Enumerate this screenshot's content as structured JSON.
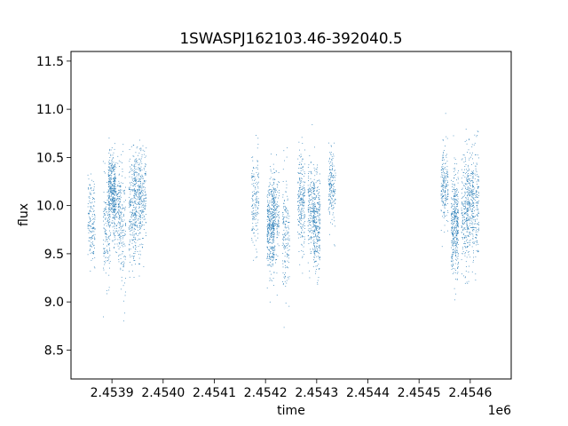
{
  "chart_data": {
    "type": "scatter",
    "title": "1SWASPJ162103.46-392040.5",
    "xlabel": "time",
    "ylabel": "flux",
    "x_offset_label": "1e6",
    "xlim": [
      2.45382,
      2.45468
    ],
    "ylim": [
      8.2,
      11.6
    ],
    "xticks": [
      2.4539,
      2.454,
      2.4541,
      2.4542,
      2.4543,
      2.4544,
      2.4545,
      2.4546
    ],
    "xtick_labels": [
      "2.4539",
      "2.4540",
      "2.4541",
      "2.4542",
      "2.4543",
      "2.4544",
      "2.4545",
      "2.4546"
    ],
    "yticks": [
      8.5,
      9.0,
      9.5,
      10.0,
      10.5,
      11.0,
      11.5
    ],
    "ytick_labels": [
      "8.5",
      "9.0",
      "9.5",
      "10.0",
      "10.5",
      "11.0",
      "11.5"
    ],
    "grid": false,
    "legend": "none",
    "marker_color": "#1f77b4",
    "series": [
      {
        "clusters": [
          {
            "x": 2.45386,
            "mean": 9.85,
            "sd": 0.22,
            "n": 160
          },
          {
            "x": 2.45389,
            "mean": 9.75,
            "sd": 0.26,
            "n": 160
          },
          {
            "x": 2.4539,
            "mean": 10.15,
            "sd": 0.18,
            "n": 360
          },
          {
            "x": 2.45391,
            "mean": 9.95,
            "sd": 0.22,
            "n": 170
          },
          {
            "x": 2.45392,
            "mean": 9.8,
            "sd": 0.35,
            "n": 140
          },
          {
            "x": 2.45394,
            "mean": 9.9,
            "sd": 0.32,
            "n": 220
          },
          {
            "x": 2.45395,
            "mean": 10.05,
            "sd": 0.25,
            "n": 200
          },
          {
            "x": 2.45396,
            "mean": 10.1,
            "sd": 0.25,
            "n": 180
          },
          {
            "x": 2.45418,
            "mean": 10.05,
            "sd": 0.25,
            "n": 160
          },
          {
            "x": 2.45421,
            "mean": 9.75,
            "sd": 0.25,
            "n": 360
          },
          {
            "x": 2.45422,
            "mean": 9.9,
            "sd": 0.25,
            "n": 200
          },
          {
            "x": 2.45424,
            "mean": 9.75,
            "sd": 0.3,
            "n": 170
          },
          {
            "x": 2.45427,
            "mean": 10.05,
            "sd": 0.25,
            "n": 240
          },
          {
            "x": 2.45429,
            "mean": 9.95,
            "sd": 0.25,
            "n": 200
          },
          {
            "x": 2.4543,
            "mean": 9.8,
            "sd": 0.25,
            "n": 300
          },
          {
            "x": 2.45433,
            "mean": 10.2,
            "sd": 0.2,
            "n": 180
          },
          {
            "x": 2.45455,
            "mean": 10.2,
            "sd": 0.2,
            "n": 200
          },
          {
            "x": 2.45457,
            "mean": 9.8,
            "sd": 0.28,
            "n": 400
          },
          {
            "x": 2.45459,
            "mean": 9.9,
            "sd": 0.3,
            "n": 220
          },
          {
            "x": 2.4546,
            "mean": 10.05,
            "sd": 0.25,
            "n": 200
          },
          {
            "x": 2.45461,
            "mean": 10.0,
            "sd": 0.28,
            "n": 180
          }
        ]
      }
    ]
  }
}
